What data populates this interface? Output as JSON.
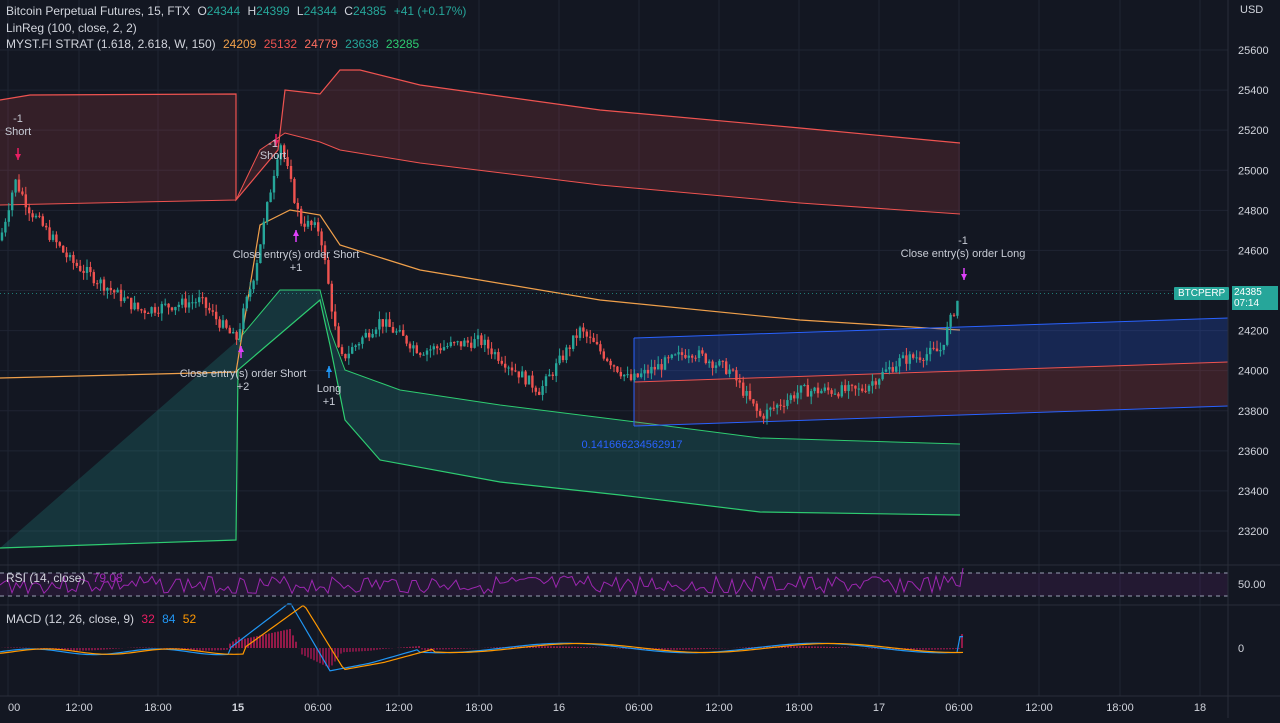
{
  "header": {
    "symbol": "Bitcoin Perpetual Futures, 15, FTX",
    "o_label": "O",
    "o_value": "24344",
    "h_label": "H",
    "h_value": "24399",
    "l_label": "L",
    "l_value": "24344",
    "c_label": "C",
    "c_value": "24385",
    "change": "+41 (+0.17%)"
  },
  "indicators": {
    "linreg_label": "LinReg (100, close, 2, 2)",
    "myst_label": "MYST.FI STRAT (1.618, 2.618, W, 150)",
    "myst_values": [
      {
        "text": "24209",
        "color": "#f0a04b"
      },
      {
        "text": "25132",
        "color": "#ef5350"
      },
      {
        "text": "24779",
        "color": "#ff6f61"
      },
      {
        "text": "23638",
        "color": "#26a69a"
      },
      {
        "text": "23285",
        "color": "#2ecc71"
      }
    ]
  },
  "price_axis": {
    "currency": "USD",
    "ticks": [
      "25600",
      "25400",
      "25200",
      "25000",
      "24800",
      "24600",
      "24400",
      "24200",
      "24000",
      "23800",
      "23600",
      "23400",
      "23200"
    ]
  },
  "price_tag": {
    "symbol": "BTCPERP",
    "price": "24385",
    "countdown": "07:14"
  },
  "time_axis": {
    "labels": [
      {
        "text": "00",
        "bold": false
      },
      {
        "text": "12:00",
        "bold": false
      },
      {
        "text": "18:00",
        "bold": false
      },
      {
        "text": "15",
        "bold": true
      },
      {
        "text": "06:00",
        "bold": false
      },
      {
        "text": "12:00",
        "bold": false
      },
      {
        "text": "18:00",
        "bold": false
      },
      {
        "text": "16",
        "bold": false
      },
      {
        "text": "06:00",
        "bold": false
      },
      {
        "text": "12:00",
        "bold": false
      },
      {
        "text": "18:00",
        "bold": false
      },
      {
        "text": "17",
        "bold": false
      },
      {
        "text": "06:00",
        "bold": false
      },
      {
        "text": "12:00",
        "bold": false
      },
      {
        "text": "18:00",
        "bold": false
      },
      {
        "text": "18",
        "bold": false
      }
    ]
  },
  "annotations": [
    {
      "text": "-1",
      "color": "#c8ccd6"
    },
    {
      "text": "Short",
      "color": "#c8ccd6"
    },
    {
      "text": "-1",
      "color": "#c8ccd6"
    },
    {
      "text": "Short",
      "color": "#c8ccd6"
    },
    {
      "text": "Close entry(s) order Short",
      "color": "#c8ccd6"
    },
    {
      "text": "+1",
      "color": "#c8ccd6"
    },
    {
      "text": "Close entry(s) order Short",
      "color": "#c8ccd6"
    },
    {
      "text": "+2",
      "color": "#c8ccd6"
    },
    {
      "text": "Long",
      "color": "#c8ccd6"
    },
    {
      "text": "+1",
      "color": "#c8ccd6"
    },
    {
      "text": "-1",
      "color": "#c8ccd6"
    },
    {
      "text": "Close entry(s) order Long",
      "color": "#c8ccd6"
    },
    {
      "text": "0.141666234562917",
      "color": "#2962ff"
    }
  ],
  "rsi": {
    "label": "RSI (14, close)",
    "value": "79.08",
    "value_color": "#9c27b0",
    "level": "50.00"
  },
  "macd": {
    "label": "MACD (12, 26, close, 9)",
    "values": [
      {
        "text": "32",
        "color": "#e91e63"
      },
      {
        "text": "84",
        "color": "#2196f3"
      },
      {
        "text": "52",
        "color": "#ff9800"
      }
    ],
    "zero": "0"
  },
  "colors": {
    "background": "#131722",
    "grid": "#1f2433",
    "up": "#26a69a",
    "down": "#ef5350",
    "upper_band": "#ef5350",
    "lower_band": "#2ecc71",
    "mid_line": "#f0a04b",
    "linreg_blue": "#2962ff",
    "rsi": "#9c27b0",
    "macd": "#2196f3",
    "signal": "#ff9800"
  }
}
